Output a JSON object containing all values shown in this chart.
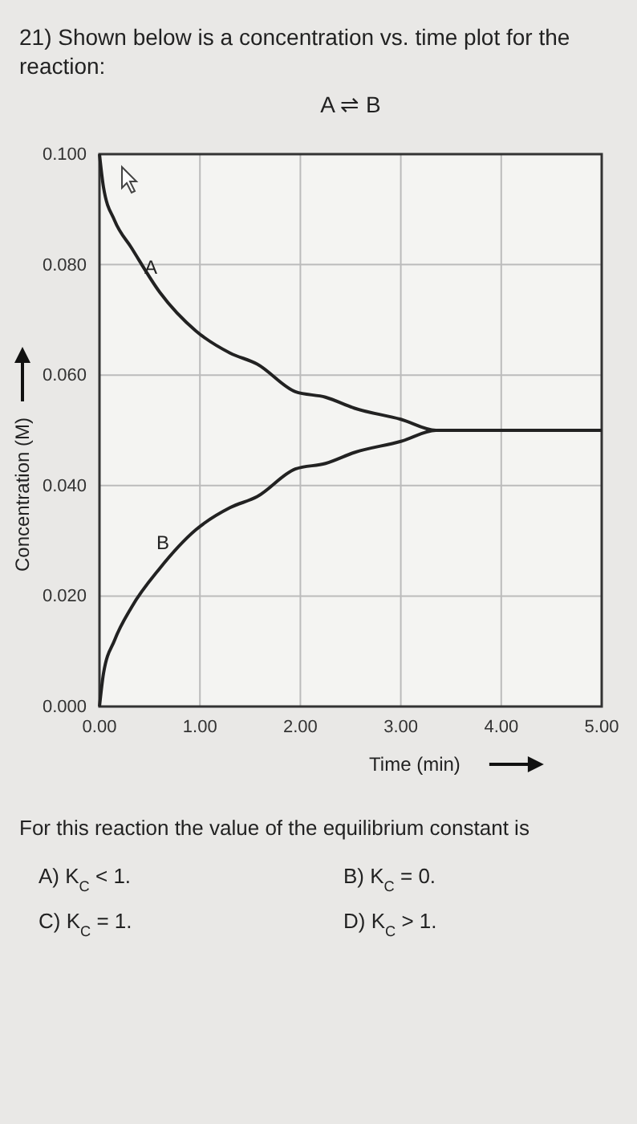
{
  "chart_data": {
    "type": "line",
    "title": "21) Shown below is a concentration vs. time plot for the reaction:",
    "subtitle": "A ⇌ B",
    "xlabel": "Time (min)",
    "ylabel": "Concentration (M)",
    "annotations": [
      "For this reaction the value of the equilibrium constant is",
      "A) K$_{C}$ < 1.",
      "B) K$_{C}$ = 0.",
      "C) K$_{C}$ = 1.",
      "D) K$_{C}$ > 1."
    ],
    "x": [
      0,
      0.04,
      0.15,
      0.32,
      0.6,
      0.96,
      1.3,
      1.57,
      1.95,
      2.25,
      2.54,
      3,
      3.35,
      4,
      5
    ],
    "series": [
      {
        "name": "A",
        "color": "#222222",
        "values": [
          0.1,
          0.094,
          0.088,
          0.083,
          0.075,
          0.068,
          0.064,
          0.062,
          0.057,
          0.056,
          0.054,
          0.052,
          0.05,
          0.05,
          0.05
        ]
      },
      {
        "name": "B",
        "color": "#222222",
        "values": [
          0,
          0.006,
          0.012,
          0.018,
          0.025,
          0.032,
          0.036,
          0.038,
          0.043,
          0.044,
          0.046,
          0.048,
          0.05,
          0.05,
          0.05
        ]
      }
    ],
    "xlim": [
      0,
      5
    ],
    "ylim": [
      0,
      0.1
    ],
    "xticks": [
      {
        "value": 0,
        "label": "0.00"
      },
      {
        "value": 1,
        "label": "1.00"
      },
      {
        "value": 2,
        "label": "2.00"
      },
      {
        "value": 3,
        "label": "3.00"
      },
      {
        "value": 4,
        "label": "4.00"
      },
      {
        "value": 5,
        "label": "5.00"
      }
    ],
    "yticks": [
      {
        "value": 0,
        "label": "0.000"
      },
      {
        "value": 0.02,
        "label": "0.020"
      },
      {
        "value": 0.04,
        "label": "0.040"
      },
      {
        "value": 0.06,
        "label": "0.060"
      },
      {
        "value": 0.08,
        "label": "0.080"
      },
      {
        "value": 0.1,
        "label": "0.100"
      }
    ],
    "grid": true,
    "line_style": "solid"
  }
}
